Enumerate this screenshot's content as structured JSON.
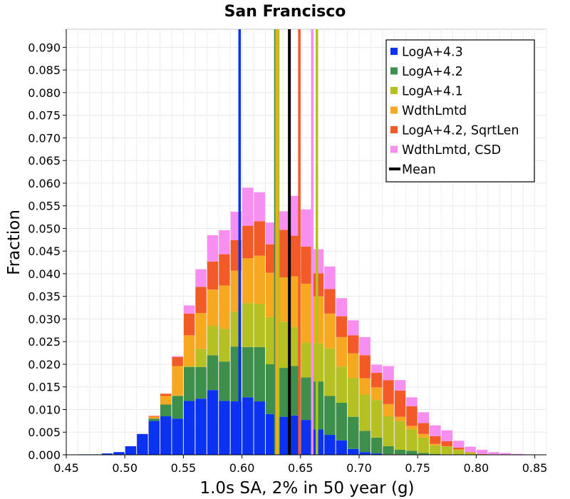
{
  "chart_data": {
    "type": "bar",
    "stacked": true,
    "title": "San Francisco",
    "xlabel": "1.0s SA, 2% in 50 year (g)",
    "ylabel": "Fraction",
    "xlim": [
      0.45,
      0.86
    ],
    "ylim": [
      0,
      0.094
    ],
    "grid": true,
    "legend_position": "top-right",
    "x_ticks": [
      "0.45",
      "0.50",
      "0.55",
      "0.60",
      "0.65",
      "0.70",
      "0.75",
      "0.80",
      "0.85"
    ],
    "x_tick_values": [
      0.45,
      0.5,
      0.55,
      0.6,
      0.65,
      0.7,
      0.75,
      0.8,
      0.85
    ],
    "y_ticks": [
      "0.000",
      "0.005",
      "0.010",
      "0.015",
      "0.020",
      "0.025",
      "0.030",
      "0.035",
      "0.040",
      "0.045",
      "0.050",
      "0.055",
      "0.060",
      "0.065",
      "0.070",
      "0.075",
      "0.080",
      "0.085",
      "0.090"
    ],
    "y_tick_values": [
      0,
      0.005,
      0.01,
      0.015,
      0.02,
      0.025,
      0.03,
      0.035,
      0.04,
      0.045,
      0.05,
      0.055,
      0.06,
      0.065,
      0.07,
      0.075,
      0.08,
      0.085,
      0.09
    ],
    "bin_width": 0.01,
    "bin_starts": [
      0.46,
      0.47,
      0.48,
      0.49,
      0.5,
      0.51,
      0.52,
      0.53,
      0.54,
      0.55,
      0.56,
      0.57,
      0.58,
      0.59,
      0.6,
      0.61,
      0.62,
      0.63,
      0.64,
      0.65,
      0.66,
      0.67,
      0.68,
      0.69,
      0.7,
      0.71,
      0.72,
      0.73,
      0.74,
      0.75,
      0.76,
      0.77,
      0.78,
      0.79,
      0.8,
      0.81,
      0.82,
      0.83,
      0.84
    ],
    "series": [
      {
        "name": "LogA+4.3",
        "color": "#0a32f0",
        "values": [
          0.0001,
          0.0001,
          0.0003,
          0.0006,
          0.0019,
          0.0046,
          0.0075,
          0.0085,
          0.008,
          0.0119,
          0.0124,
          0.0143,
          0.0119,
          0.0118,
          0.0127,
          0.0118,
          0.009,
          0.0084,
          0.0087,
          0.0077,
          0.0056,
          0.0044,
          0.0032,
          0.0013,
          0.0006,
          0.0003,
          0.0001,
          0.0001,
          0,
          0,
          0,
          0,
          0,
          0,
          0,
          0,
          0,
          0,
          0
        ]
      },
      {
        "name": "LogA+4.2",
        "color": "#3e8e4c",
        "values": [
          0,
          0,
          0,
          0,
          0,
          0,
          0.0005,
          0.0026,
          0.005,
          0.0075,
          0.007,
          0.0077,
          0.0087,
          0.0121,
          0.0111,
          0.012,
          0.011,
          0.0108,
          0.0109,
          0.0094,
          0.0106,
          0.0086,
          0.0083,
          0.0071,
          0.0047,
          0.0035,
          0.0018,
          0.001,
          0.0009,
          0.0004,
          0.0002,
          0.0001,
          0,
          0,
          0,
          0,
          0,
          0,
          0
        ]
      },
      {
        "name": "LogA+4.1",
        "color": "#b5c023",
        "values": [
          0,
          0,
          0,
          0,
          0,
          0,
          0,
          0,
          0.0001,
          0.0002,
          0.004,
          0.0065,
          0.0072,
          0.0077,
          0.0097,
          0.0095,
          0.0104,
          0.0102,
          0.0086,
          0.0077,
          0.0084,
          0.0105,
          0.008,
          0.0086,
          0.008,
          0.0083,
          0.0066,
          0.0063,
          0.0047,
          0.0034,
          0.0019,
          0.0017,
          0.0011,
          0.0005,
          0.0001,
          0.0001,
          0,
          0,
          0
        ]
      },
      {
        "name": "WdthLmtd",
        "color": "#f5a820",
        "values": [
          0,
          0,
          0,
          0,
          0,
          0,
          0.0004,
          0.0019,
          0.0065,
          0.0068,
          0.0079,
          0.008,
          0.0096,
          0.0091,
          0.0099,
          0.0107,
          0.0098,
          0.0098,
          0.0112,
          0.013,
          0.0104,
          0.0077,
          0.0065,
          0.0054,
          0.0036,
          0.0028,
          0.0027,
          0.001,
          0.0008,
          0.0008,
          0.0003,
          0.0001,
          0.0001,
          0,
          0,
          0,
          0,
          0,
          0
        ]
      },
      {
        "name": "LogA+4.2, SqrtLen",
        "color": "#f25a28",
        "values": [
          0,
          0,
          0,
          0,
          0,
          0,
          0.0002,
          0.0005,
          0.002,
          0.0048,
          0.0058,
          0.0062,
          0.0069,
          0.0067,
          0.0072,
          0.0076,
          0.0063,
          0.0105,
          0.009,
          0.0082,
          0.0051,
          0.0054,
          0.0046,
          0.004,
          0.0051,
          0.0032,
          0.0053,
          0.0058,
          0.0043,
          0.0024,
          0.0017,
          0.0011,
          0.0004,
          0.0001,
          0.0001,
          0,
          0,
          0,
          0
        ]
      },
      {
        "name": "WdthLmtd, CSD",
        "color": "#f78ff0",
        "values": [
          0,
          0,
          0,
          0,
          0,
          0,
          0,
          0,
          0.0002,
          0.0018,
          0.0039,
          0.0058,
          0.0053,
          0.0063,
          0.0084,
          0.0064,
          0.0048,
          0.0041,
          0.0088,
          0.0082,
          0.0053,
          0.005,
          0.004,
          0.0033,
          0.004,
          0.0018,
          0.0031,
          0.0023,
          0.002,
          0.0024,
          0.0024,
          0.0024,
          0.0015,
          0.0012,
          0.0009,
          0.0005,
          0.0004,
          0.0002,
          0.0001
        ]
      }
    ],
    "vertical_lines": [
      {
        "series": "LogA+4.3",
        "x": 0.598,
        "color": "#0a32f0"
      },
      {
        "series": "LogA+4.2",
        "x": 0.6285,
        "color": "#3e8e4c"
      },
      {
        "series": "LogA+4.1",
        "x": 0.631,
        "color": "#b5c023"
      },
      {
        "series": "WdthLmtd",
        "x": 0.6295,
        "color": "#f5a820"
      },
      {
        "series": "LogA+4.2, SqrtLen",
        "x": 0.649,
        "color": "#f25a28"
      },
      {
        "series": "WdthLmtd, CSD",
        "x": 0.66,
        "color": "#f78ff0"
      },
      {
        "series": "LogA+4.1",
        "x": 0.664,
        "color": "#b5c023"
      },
      {
        "series": "Mean",
        "x": 0.6405,
        "color": "#000000"
      }
    ],
    "legend": [
      {
        "label": "LogA+4.3",
        "color": "#0a32f0",
        "kind": "square"
      },
      {
        "label": "LogA+4.2",
        "color": "#3e8e4c",
        "kind": "square"
      },
      {
        "label": "LogA+4.1",
        "color": "#b5c023",
        "kind": "square"
      },
      {
        "label": "WdthLmtd",
        "color": "#f5a820",
        "kind": "square"
      },
      {
        "label": "LogA+4.2, SqrtLen",
        "color": "#f25a28",
        "kind": "square"
      },
      {
        "label": "WdthLmtd, CSD",
        "color": "#f78ff0",
        "kind": "square"
      },
      {
        "label": "Mean",
        "color": "#000000",
        "kind": "line"
      }
    ]
  }
}
